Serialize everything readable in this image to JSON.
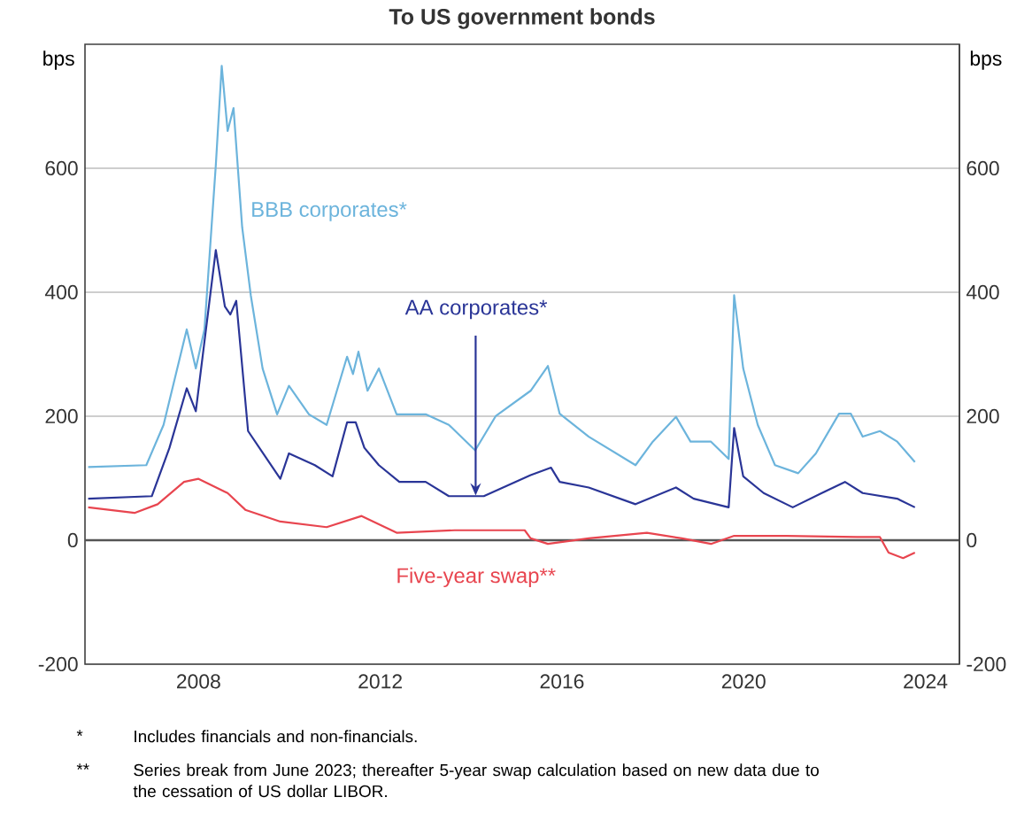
{
  "chart_data": {
    "type": "line",
    "title": "To US government bonds",
    "ylabel": "bps",
    "y2label": "bps",
    "xlim": [
      2005.5,
      2024.75
    ],
    "xticks": [
      2008,
      2012,
      2016,
      2020,
      2024
    ],
    "ylim": [
      -200,
      800
    ],
    "yticks": [
      -200,
      0,
      200,
      400,
      600
    ],
    "y2lim": [
      -200,
      800
    ],
    "y2ticks": [
      -200,
      0,
      200,
      400,
      600
    ],
    "grid": "y",
    "marker": "none",
    "line_style": "solid",
    "ref_lines": [
      {
        "axis": "y",
        "value": 0,
        "color": "#555555"
      }
    ],
    "series": [
      {
        "name": "BBB corporates*",
        "color": "#6cb4dc",
        "x": [
          2005.57,
          2006.85,
          2007.23,
          2007.74,
          2007.94,
          2008.13,
          2008.38,
          2008.51,
          2008.64,
          2008.77,
          2008.96,
          2009.15,
          2009.41,
          2009.73,
          2009.99,
          2010.43,
          2010.82,
          2011.27,
          2011.4,
          2011.52,
          2011.72,
          2011.97,
          2012.36,
          2013.0,
          2013.51,
          2014.09,
          2014.54,
          2015.31,
          2015.69,
          2015.95,
          2016.59,
          2017.62,
          2018.0,
          2018.51,
          2018.83,
          2019.28,
          2019.67,
          2019.79,
          2019.99,
          2020.31,
          2020.69,
          2021.2,
          2021.59,
          2022.1,
          2022.36,
          2022.62,
          2023.0,
          2023.38,
          2023.77
        ],
        "values": [
          118,
          121,
          186,
          340,
          277,
          340,
          605,
          765,
          660,
          697,
          505,
          395,
          277,
          203,
          249,
          203,
          186,
          296,
          268,
          304,
          241,
          277,
          203,
          203,
          186,
          145,
          200,
          241,
          281,
          204,
          167,
          121,
          159,
          199,
          159,
          159,
          131,
          395,
          277,
          186,
          121,
          108,
          140,
          204,
          204,
          167,
          176,
          159,
          126
        ]
      },
      {
        "name": "AA corporates*",
        "color": "#2a3597",
        "x": [
          2005.57,
          2006.97,
          2007.36,
          2007.74,
          2007.94,
          2008.38,
          2008.58,
          2008.7,
          2008.83,
          2009.09,
          2009.8,
          2009.99,
          2010.56,
          2010.95,
          2011.27,
          2011.46,
          2011.65,
          2011.97,
          2012.42,
          2013.0,
          2013.51,
          2014.28,
          2015.31,
          2015.76,
          2015.95,
          2016.59,
          2017.62,
          2018.51,
          2018.9,
          2019.67,
          2019.79,
          2019.99,
          2020.44,
          2021.08,
          2021.72,
          2022.23,
          2022.62,
          2023.38,
          2023.77
        ],
        "values": [
          67,
          71,
          149,
          245,
          208,
          468,
          377,
          364,
          386,
          176,
          99,
          140,
          121,
          103,
          190,
          190,
          149,
          121,
          94,
          94,
          71,
          71,
          105,
          117,
          94,
          85,
          58,
          85,
          67,
          53,
          181,
          103,
          76,
          53,
          76,
          94,
          76,
          67,
          53
        ]
      },
      {
        "name": "Five-year swap**",
        "color": "#e8454f",
        "x": [
          2005.57,
          2006.59,
          2007.1,
          2007.68,
          2008.0,
          2008.64,
          2009.03,
          2009.8,
          2010.82,
          2011.59,
          2012.36,
          2013.64,
          2015.18,
          2015.31,
          2015.69,
          2016.59,
          2017.87,
          2018.64,
          2019.28,
          2019.79,
          2020.95,
          2022.49,
          2023.0,
          2023.19,
          2023.51,
          2023.77
        ],
        "values": [
          53,
          44,
          58,
          94,
          99,
          76,
          49,
          30,
          21,
          39,
          12,
          16,
          16,
          3,
          -6,
          3,
          12,
          3,
          -6,
          7,
          7,
          5,
          5,
          -20,
          -29,
          -20
        ]
      }
    ],
    "annotations": [
      "*",
      "Includes financials and non-financials.",
      "**",
      "Series break from June 2023; thereafter 5-year swap calculation based on new data due to the cessation of US dollar LIBOR."
    ]
  }
}
